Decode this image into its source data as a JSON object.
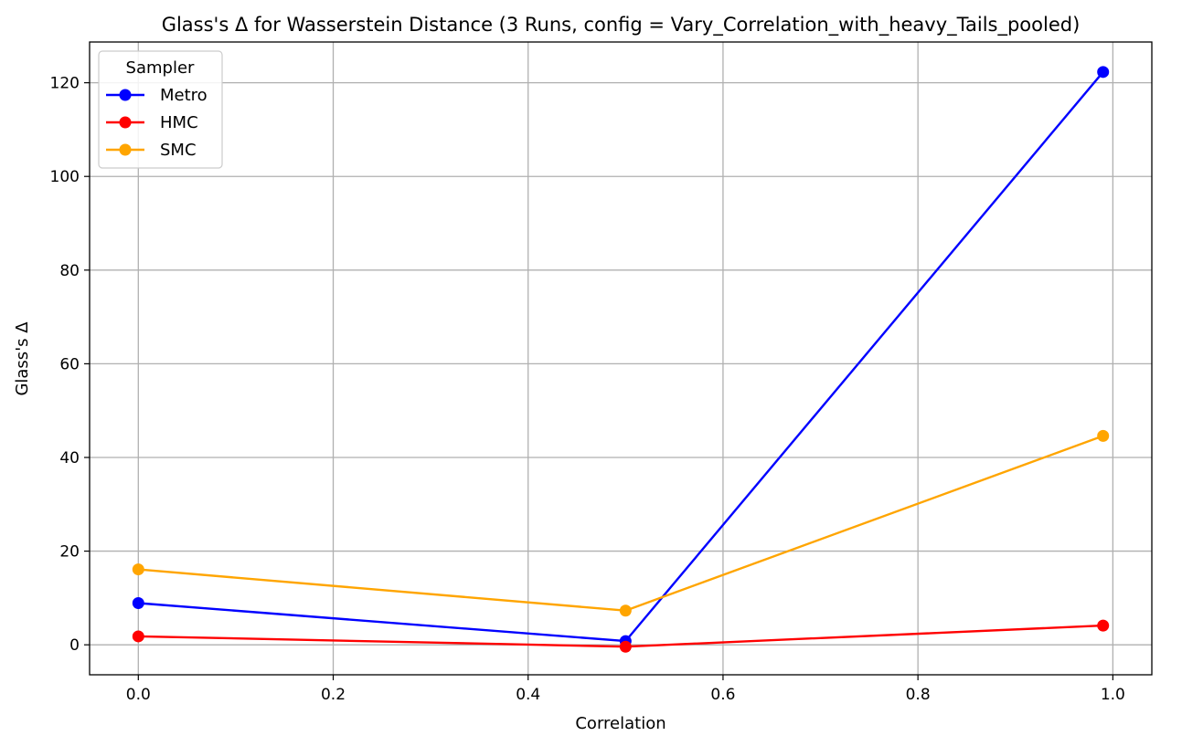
{
  "chart_data": {
    "type": "line",
    "title": "Glass's Δ for Wasserstein Distance (3 Runs, config = Vary_Correlation_with_heavy_Tails_pooled)",
    "xlabel": "Correlation",
    "ylabel": "Glass's Δ",
    "xlim": [
      -0.05,
      1.04
    ],
    "ylim": [
      -6.4,
      128.7
    ],
    "xticks": [
      0.0,
      0.2,
      0.4,
      0.6,
      0.8,
      1.0
    ],
    "xtick_labels": [
      "0.0",
      "0.2",
      "0.4",
      "0.6",
      "0.8",
      "1.0"
    ],
    "yticks": [
      0,
      20,
      40,
      60,
      80,
      100,
      120
    ],
    "ytick_labels": [
      "0",
      "20",
      "40",
      "60",
      "80",
      "100",
      "120"
    ],
    "grid": true,
    "legend": {
      "title": "Sampler",
      "placement": "upper-left"
    },
    "x": [
      0.0,
      0.5,
      0.99
    ],
    "series": [
      {
        "name": "Metro",
        "color": "#0000ff",
        "values": [
          8.9,
          0.8,
          122.3
        ]
      },
      {
        "name": "HMC",
        "color": "#ff0000",
        "values": [
          1.8,
          -0.4,
          4.1
        ]
      },
      {
        "name": "SMC",
        "color": "#ffa500",
        "values": [
          16.1,
          7.3,
          44.6
        ]
      }
    ]
  }
}
